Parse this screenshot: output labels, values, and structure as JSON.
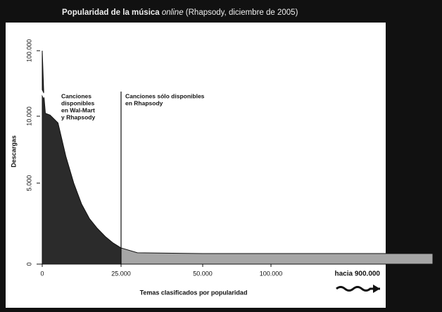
{
  "chart_data": {
    "type": "area",
    "title": {
      "main": "Popularidad de la música",
      "italic": "online",
      "rest": "(Rhapsody, diciembre de 2005)"
    },
    "xlabel": "Temas clasificados por popularidad",
    "ylabel": "Descargas",
    "series": [
      {
        "color": "#2b2b2b",
        "x": [
          0,
          500,
          1000,
          2500,
          5000,
          7500,
          10000,
          12500,
          15000,
          17500,
          20000,
          22500,
          25000
        ],
        "values": [
          100000,
          40000,
          14000,
          11500,
          9500,
          7000,
          5000,
          3700,
          2800,
          2200,
          1700,
          1300,
          1000
        ]
      },
      {
        "color": "#a6a6a6",
        "x": [
          25000,
          30000,
          50000,
          100000,
          900000
        ],
        "values": [
          1000,
          700,
          650,
          650,
          650
        ]
      }
    ],
    "xticks": [
      0,
      {
        "value": 25000,
        "label": "25.000"
      },
      {
        "value": 50000,
        "label": "50.000"
      },
      {
        "value": 100000,
        "label": "100.000"
      },
      {
        "value": 900000,
        "label": "hacia 900.000"
      }
    ],
    "yticks": [
      0,
      {
        "value": 5000,
        "label": "5.000"
      },
      {
        "value": 10000,
        "label": "10.000"
      },
      {
        "value": 100000,
        "label": "100.000"
      }
    ],
    "annotations": [
      {
        "lines": [
          "Canciones",
          "disponibles",
          "en Wal-Mart",
          "y Rhapsody"
        ]
      },
      {
        "lines": [
          "Canciones sólo disponibles",
          "en Rhapsody"
        ]
      }
    ]
  }
}
